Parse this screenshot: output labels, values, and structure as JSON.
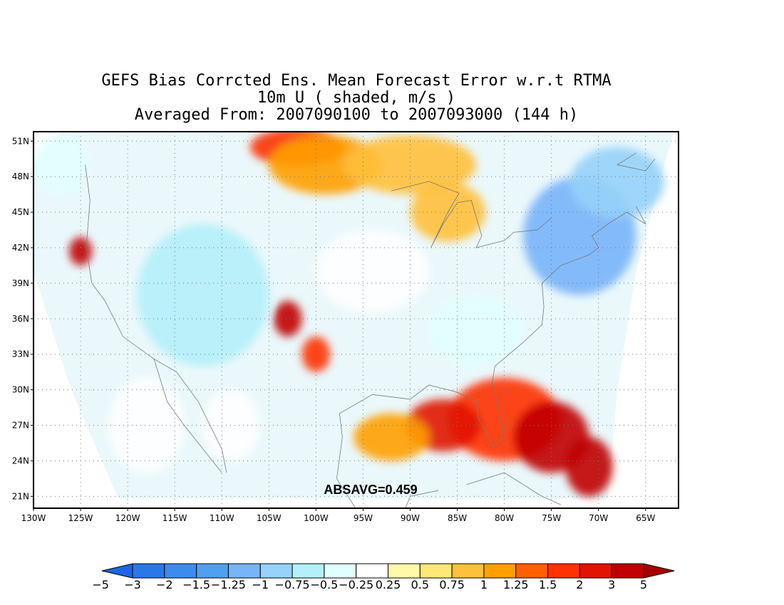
{
  "title": {
    "line1": "GEFS Bias Corrcted Ens. Mean Forecast Error w.r.t RTMA",
    "line2": "10m U ( shaded, m/s )",
    "line3": "Averaged From: 2007090100 to 2007093000 (144 h)"
  },
  "map": {
    "lon_range": [
      -130,
      -61.5
    ],
    "lat_range": [
      20,
      51.8
    ],
    "grid": true,
    "lon_ticks": [
      {
        "value": -130,
        "label": "130W"
      },
      {
        "value": -125,
        "label": "125W"
      },
      {
        "value": -120,
        "label": "120W"
      },
      {
        "value": -115,
        "label": "115W"
      },
      {
        "value": -110,
        "label": "110W"
      },
      {
        "value": -105,
        "label": "105W"
      },
      {
        "value": -100,
        "label": "100W"
      },
      {
        "value": -95,
        "label": "95W"
      },
      {
        "value": -90,
        "label": "90W"
      },
      {
        "value": -85,
        "label": "85W"
      },
      {
        "value": -80,
        "label": "80W"
      },
      {
        "value": -75,
        "label": "75W"
      },
      {
        "value": -70,
        "label": "70W"
      },
      {
        "value": -65,
        "label": "65W"
      }
    ],
    "lat_ticks": [
      {
        "value": 21,
        "label": "21N"
      },
      {
        "value": 24,
        "label": "24N"
      },
      {
        "value": 27,
        "label": "27N"
      },
      {
        "value": 30,
        "label": "30N"
      },
      {
        "value": 33,
        "label": "33N"
      },
      {
        "value": 36,
        "label": "36N"
      },
      {
        "value": 39,
        "label": "39N"
      },
      {
        "value": 42,
        "label": "42N"
      },
      {
        "value": 45,
        "label": "45N"
      },
      {
        "value": 48,
        "label": "48N"
      },
      {
        "value": 51,
        "label": "51N"
      }
    ],
    "annotation": "ABSAVG=0.459",
    "blobs": [
      {
        "lon": -102,
        "lat": 50.5,
        "rx": 5,
        "ry": 1.6,
        "value": 1.25
      },
      {
        "lon": -99,
        "lat": 49,
        "rx": 6,
        "ry": 2.5,
        "value": 0.75
      },
      {
        "lon": -90,
        "lat": 49,
        "rx": 7,
        "ry": 2.5,
        "value": 0.5
      },
      {
        "lon": -86,
        "lat": 45,
        "rx": 4,
        "ry": 2.5,
        "value": 0.5
      },
      {
        "lon": -125,
        "lat": 41.7,
        "rx": 1.2,
        "ry": 1.2,
        "value": 2
      },
      {
        "lon": -103,
        "lat": 36,
        "rx": 1.5,
        "ry": 1.5,
        "value": 2
      },
      {
        "lon": -100,
        "lat": 33,
        "rx": 1.5,
        "ry": 1.5,
        "value": 1.25
      },
      {
        "lon": -80,
        "lat": 27.5,
        "rx": 6,
        "ry": 3.5,
        "value": 1.25
      },
      {
        "lon": -75,
        "lat": 26,
        "rx": 4,
        "ry": 3,
        "value": 2
      },
      {
        "lon": -71,
        "lat": 23.5,
        "rx": 2.5,
        "ry": 2.5,
        "value": 2
      },
      {
        "lon": -86.5,
        "lat": 27,
        "rx": 4,
        "ry": 2.2,
        "value": 1.5
      },
      {
        "lon": -92,
        "lat": 26,
        "rx": 4,
        "ry": 2,
        "value": 0.75
      },
      {
        "lon": -72,
        "lat": 43,
        "rx": 6,
        "ry": 5,
        "value": -1.5
      },
      {
        "lon": -68,
        "lat": 47.5,
        "rx": 5,
        "ry": 3,
        "value": -1.25
      },
      {
        "lon": -112,
        "lat": 38,
        "rx": 7,
        "ry": 6,
        "value": -1
      },
      {
        "lon": -94,
        "lat": 40,
        "rx": 6,
        "ry": 3.5,
        "value": -0.5
      },
      {
        "lon": -83,
        "lat": 35,
        "rx": 5,
        "ry": 3,
        "value": -0.75
      },
      {
        "lon": -127,
        "lat": 49,
        "rx": 3,
        "ry": 2.5,
        "value": -0.75
      },
      {
        "lon": -118,
        "lat": 27,
        "rx": 4,
        "ry": 4,
        "value": -0.5
      },
      {
        "lon": -109,
        "lat": 27,
        "rx": 3,
        "ry": 3,
        "value": -0.5
      }
    ]
  },
  "colorbar": {
    "colors": [
      "#1e64e6",
      "#2a78e8",
      "#3c8cf0",
      "#50a0f0",
      "#78b4f8",
      "#96d2fa",
      "#b4f0fa",
      "#e1ffff",
      "#ffffff",
      "#fffaaa",
      "#ffe878",
      "#ffc03c",
      "#ffa000",
      "#ff6000",
      "#ff3200",
      "#e11400",
      "#c00000",
      "#a50000"
    ],
    "labels": [
      "−5",
      "−3",
      "−2",
      "−1.5",
      "−1.25",
      "−1",
      "−0.75",
      "−0.5",
      "−0.25",
      "0.25",
      "0.5",
      "0.75",
      "1",
      "1.25",
      "1.5",
      "2",
      "3",
      "5"
    ],
    "values": [
      -5,
      -3,
      -2,
      -1.5,
      -1.25,
      -1,
      -0.75,
      -0.5,
      -0.25,
      0.25,
      0.5,
      0.75,
      1,
      1.25,
      1.5,
      2,
      3,
      5
    ]
  }
}
